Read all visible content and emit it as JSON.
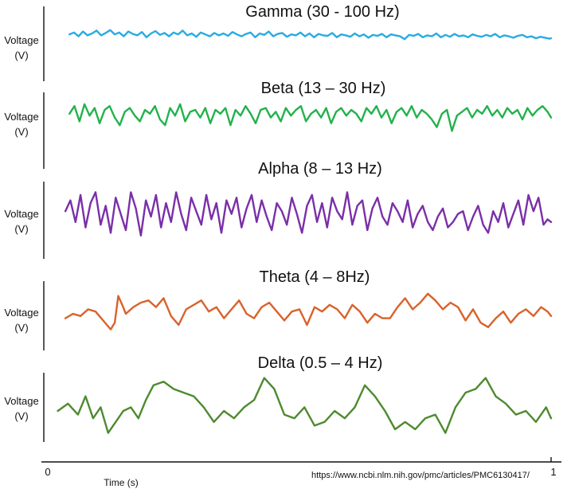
{
  "chart_data": {
    "type": "line",
    "x_ticks": [
      "0",
      "1"
    ],
    "xlabel": "Time (s)",
    "source": "https://www.ncbi.nlm.nih.gov/pmc/articles/PMC6130417/",
    "panels": [
      {
        "title": "Gamma (30 - 100 Hz)",
        "ylabel_line1": "Voltage",
        "ylabel_line2": "(V)",
        "color": "#29ABE2",
        "x": [
          0.043,
          0.052,
          0.061,
          0.07,
          0.079,
          0.088,
          0.097,
          0.106,
          0.115,
          0.124,
          0.133,
          0.142,
          0.151,
          0.16,
          0.169,
          0.178,
          0.187,
          0.196,
          0.205,
          0.214,
          0.223,
          0.232,
          0.241,
          0.25,
          0.259,
          0.268,
          0.277,
          0.286,
          0.295,
          0.304,
          0.313,
          0.322,
          0.331,
          0.34,
          0.349,
          0.358,
          0.367,
          0.376,
          0.385,
          0.394,
          0.403,
          0.412,
          0.421,
          0.43,
          0.439,
          0.448,
          0.457,
          0.466,
          0.475,
          0.484,
          0.493,
          0.502,
          0.511,
          0.52,
          0.529,
          0.538,
          0.547,
          0.556,
          0.565,
          0.574,
          0.583,
          0.592,
          0.601,
          0.61,
          0.619,
          0.628,
          0.637,
          0.646,
          0.655,
          0.664,
          0.673,
          0.682,
          0.691,
          0.7,
          0.709,
          0.718,
          0.727,
          0.736,
          0.745,
          0.754,
          0.763,
          0.772,
          0.781,
          0.79,
          0.799,
          0.808,
          0.817,
          0.826,
          0.835,
          0.844,
          0.853,
          0.862,
          0.871,
          0.88,
          0.889,
          0.898,
          0.907,
          0.916,
          0.925,
          0.934,
          0.943,
          0.952,
          0.961,
          0.97,
          0.979,
          0.988,
          0.997,
          1.0
        ],
        "y": [
          0.4,
          0.6,
          0.2,
          0.7,
          0.3,
          0.5,
          0.8,
          0.3,
          0.55,
          0.85,
          0.4,
          0.6,
          0.2,
          0.7,
          0.45,
          0.3,
          0.65,
          0.1,
          0.5,
          0.75,
          0.35,
          0.55,
          0.2,
          0.6,
          0.4,
          0.8,
          0.3,
          0.5,
          0.15,
          0.6,
          0.4,
          0.2,
          0.55,
          0.3,
          0.5,
          0.25,
          0.65,
          0.4,
          0.2,
          0.45,
          0.6,
          0.1,
          0.5,
          0.35,
          0.7,
          0.2,
          0.45,
          0.55,
          0.15,
          0.4,
          0.3,
          0.6,
          0.2,
          0.5,
          0.1,
          0.45,
          0.3,
          0.25,
          0.55,
          0.1,
          0.4,
          0.3,
          0.15,
          0.5,
          0.2,
          0.4,
          0.05,
          0.35,
          0.25,
          0.45,
          0.1,
          0.4,
          0.3,
          0.2,
          -0.1,
          0.35,
          0.25,
          0.45,
          0.1,
          0.3,
          0.2,
          0.5,
          0.1,
          0.35,
          0.15,
          0.45,
          0.2,
          0.3,
          0.1,
          0.4,
          0.25,
          0.15,
          0.35,
          0.2,
          0.45,
          0.1,
          0.3,
          0.2,
          0.05,
          0.25,
          0.35,
          0.1,
          0.2,
          0.0,
          0.15,
          0.05,
          -0.05,
          0.0
        ]
      },
      {
        "title": "Beta (13 – 30 Hz)",
        "ylabel_line1": "Voltage",
        "ylabel_line2": "(V)",
        "color": "#22B24C",
        "x": [
          0.043,
          0.053,
          0.063,
          0.073,
          0.083,
          0.093,
          0.103,
          0.113,
          0.123,
          0.133,
          0.143,
          0.153,
          0.163,
          0.173,
          0.183,
          0.193,
          0.203,
          0.213,
          0.223,
          0.233,
          0.243,
          0.253,
          0.263,
          0.273,
          0.283,
          0.293,
          0.303,
          0.313,
          0.323,
          0.333,
          0.343,
          0.353,
          0.363,
          0.373,
          0.383,
          0.393,
          0.403,
          0.413,
          0.423,
          0.433,
          0.443,
          0.453,
          0.463,
          0.473,
          0.483,
          0.493,
          0.503,
          0.513,
          0.523,
          0.533,
          0.543,
          0.553,
          0.563,
          0.573,
          0.583,
          0.593,
          0.603,
          0.613,
          0.623,
          0.633,
          0.643,
          0.653,
          0.663,
          0.673,
          0.683,
          0.693,
          0.703,
          0.713,
          0.723,
          0.733,
          0.743,
          0.753,
          0.763,
          0.773,
          0.783,
          0.793,
          0.803,
          0.813,
          0.823,
          0.833,
          0.843,
          0.853,
          0.863,
          0.873,
          0.883,
          0.893,
          0.903,
          0.913,
          0.923,
          0.933,
          0.943,
          0.953,
          0.963,
          0.973,
          0.983,
          0.993,
          1.0
        ],
        "y": [
          0.3,
          0.7,
          -0.1,
          0.8,
          0.2,
          0.6,
          -0.2,
          0.5,
          0.7,
          0.1,
          -0.3,
          0.4,
          0.6,
          0.2,
          -0.1,
          0.5,
          0.3,
          0.7,
          0.0,
          -0.3,
          0.6,
          0.2,
          0.8,
          -0.1,
          0.4,
          0.5,
          0.1,
          0.6,
          -0.2,
          0.5,
          0.3,
          0.6,
          -0.3,
          0.5,
          0.2,
          0.7,
          0.3,
          -0.2,
          0.5,
          0.6,
          0.1,
          0.4,
          -0.1,
          0.6,
          0.2,
          0.5,
          0.7,
          -0.1,
          0.3,
          0.5,
          0.1,
          0.6,
          -0.2,
          0.4,
          0.6,
          0.2,
          0.5,
          0.3,
          -0.1,
          0.6,
          0.3,
          0.7,
          0.1,
          0.5,
          -0.2,
          0.4,
          0.6,
          0.2,
          0.7,
          0.1,
          0.5,
          0.3,
          0.0,
          -0.4,
          0.3,
          0.5,
          -0.6,
          0.2,
          0.4,
          0.6,
          0.1,
          0.5,
          0.3,
          0.7,
          0.2,
          0.5,
          0.1,
          0.6,
          0.3,
          0.5,
          0.0,
          0.6,
          0.2,
          0.5,
          0.7,
          0.4,
          0.1
        ]
      },
      {
        "title": "Alpha (8 – 13 Hz)",
        "ylabel_line1": "Voltage",
        "ylabel_line2": "(V)",
        "color": "#7A2FA8",
        "x": [
          0.035,
          0.045,
          0.055,
          0.065,
          0.075,
          0.085,
          0.095,
          0.105,
          0.115,
          0.125,
          0.135,
          0.145,
          0.155,
          0.165,
          0.175,
          0.185,
          0.195,
          0.205,
          0.215,
          0.225,
          0.235,
          0.245,
          0.255,
          0.265,
          0.275,
          0.285,
          0.295,
          0.305,
          0.315,
          0.325,
          0.335,
          0.345,
          0.355,
          0.365,
          0.375,
          0.385,
          0.395,
          0.405,
          0.415,
          0.425,
          0.435,
          0.445,
          0.455,
          0.465,
          0.475,
          0.485,
          0.495,
          0.505,
          0.515,
          0.525,
          0.535,
          0.545,
          0.555,
          0.565,
          0.575,
          0.585,
          0.595,
          0.605,
          0.615,
          0.625,
          0.635,
          0.645,
          0.655,
          0.665,
          0.675,
          0.685,
          0.695,
          0.705,
          0.715,
          0.725,
          0.735,
          0.745,
          0.755,
          0.765,
          0.775,
          0.785,
          0.795,
          0.805,
          0.815,
          0.825,
          0.835,
          0.845,
          0.855,
          0.865,
          0.875,
          0.885,
          0.895,
          0.905,
          0.915,
          0.925,
          0.935,
          0.945,
          0.955,
          0.965,
          0.975,
          0.985,
          0.993,
          1.0
        ],
        "y": [
          0.2,
          0.6,
          -0.2,
          0.8,
          -0.4,
          0.5,
          0.9,
          -0.3,
          0.4,
          -0.6,
          0.7,
          0.1,
          -0.5,
          0.9,
          0.3,
          -0.7,
          0.6,
          0.0,
          0.8,
          -0.4,
          0.5,
          -0.2,
          0.9,
          0.1,
          -0.5,
          0.7,
          0.2,
          -0.3,
          0.8,
          -0.1,
          0.5,
          -0.6,
          0.6,
          0.1,
          0.7,
          -0.4,
          0.3,
          0.8,
          -0.2,
          0.6,
          0.0,
          -0.5,
          0.5,
          0.2,
          -0.3,
          0.7,
          0.1,
          -0.6,
          0.4,
          0.8,
          -0.2,
          0.5,
          -0.4,
          0.7,
          0.2,
          -0.1,
          0.9,
          -0.3,
          0.4,
          0.6,
          -0.5,
          0.3,
          0.7,
          0.0,
          -0.3,
          0.5,
          0.2,
          -0.2,
          0.6,
          -0.4,
          0.1,
          0.4,
          -0.2,
          -0.5,
          0.0,
          0.3,
          -0.4,
          -0.2,
          0.1,
          0.2,
          -0.5,
          0.0,
          0.4,
          -0.3,
          -0.6,
          0.2,
          -0.2,
          0.5,
          -0.4,
          0.1,
          0.6,
          -0.3,
          0.8,
          0.2,
          0.7,
          -0.3,
          -0.1,
          -0.2
        ]
      },
      {
        "title": "Theta (4 – 8Hz)",
        "ylabel_line1": "Voltage",
        "ylabel_line2": "(V)",
        "color": "#D9622B",
        "x": [
          0.035,
          0.05,
          0.065,
          0.08,
          0.095,
          0.11,
          0.125,
          0.133,
          0.14,
          0.148,
          0.155,
          0.17,
          0.185,
          0.2,
          0.215,
          0.23,
          0.245,
          0.26,
          0.275,
          0.29,
          0.305,
          0.32,
          0.335,
          0.35,
          0.365,
          0.38,
          0.395,
          0.41,
          0.425,
          0.44,
          0.455,
          0.47,
          0.485,
          0.5,
          0.515,
          0.53,
          0.545,
          0.56,
          0.575,
          0.59,
          0.605,
          0.62,
          0.635,
          0.65,
          0.665,
          0.68,
          0.695,
          0.71,
          0.725,
          0.74,
          0.755,
          0.77,
          0.785,
          0.8,
          0.815,
          0.83,
          0.845,
          0.86,
          0.875,
          0.89,
          0.905,
          0.92,
          0.935,
          0.95,
          0.965,
          0.98,
          0.993,
          1.0
        ],
        "y": [
          -0.2,
          0.0,
          -0.1,
          0.2,
          0.1,
          -0.3,
          -0.7,
          -0.4,
          0.8,
          0.4,
          0.0,
          0.3,
          0.5,
          0.6,
          0.3,
          0.7,
          -0.1,
          -0.5,
          0.2,
          0.4,
          0.6,
          0.1,
          0.3,
          -0.2,
          0.2,
          0.6,
          0.0,
          -0.2,
          0.3,
          0.5,
          0.1,
          -0.3,
          0.1,
          0.2,
          -0.5,
          0.3,
          0.1,
          0.4,
          0.2,
          -0.2,
          0.4,
          0.1,
          -0.4,
          0.0,
          -0.2,
          -0.2,
          0.3,
          0.7,
          0.2,
          0.5,
          0.9,
          0.6,
          0.2,
          0.5,
          0.3,
          -0.3,
          0.2,
          -0.4,
          -0.6,
          -0.2,
          0.1,
          -0.4,
          0.0,
          0.2,
          -0.1,
          0.3,
          0.1,
          -0.1
        ]
      },
      {
        "title": "Delta (0.5 – 4 Hz)",
        "ylabel_line1": "Voltage",
        "ylabel_line2": "(V)",
        "color": "#4E8A2F",
        "x": [
          0.02,
          0.04,
          0.06,
          0.075,
          0.09,
          0.105,
          0.12,
          0.135,
          0.15,
          0.165,
          0.18,
          0.195,
          0.21,
          0.23,
          0.25,
          0.27,
          0.29,
          0.31,
          0.33,
          0.35,
          0.37,
          0.39,
          0.41,
          0.43,
          0.45,
          0.47,
          0.49,
          0.51,
          0.53,
          0.55,
          0.57,
          0.59,
          0.61,
          0.63,
          0.65,
          0.67,
          0.69,
          0.71,
          0.73,
          0.75,
          0.77,
          0.79,
          0.81,
          0.83,
          0.85,
          0.87,
          0.89,
          0.91,
          0.93,
          0.95,
          0.97,
          0.99,
          1.0
        ],
        "y": [
          0.0,
          0.2,
          -0.1,
          0.4,
          -0.2,
          0.1,
          -0.6,
          -0.3,
          0.0,
          0.1,
          -0.2,
          0.3,
          0.7,
          0.8,
          0.6,
          0.5,
          0.4,
          0.1,
          -0.3,
          0.0,
          -0.2,
          0.1,
          0.3,
          0.9,
          0.6,
          -0.1,
          -0.2,
          0.1,
          -0.4,
          -0.3,
          0.0,
          -0.2,
          0.1,
          0.7,
          0.4,
          0.0,
          -0.5,
          -0.3,
          -0.5,
          -0.2,
          -0.1,
          -0.6,
          0.1,
          0.5,
          0.6,
          0.9,
          0.4,
          0.2,
          -0.1,
          0.0,
          -0.3,
          0.1,
          -0.2
        ]
      }
    ]
  }
}
